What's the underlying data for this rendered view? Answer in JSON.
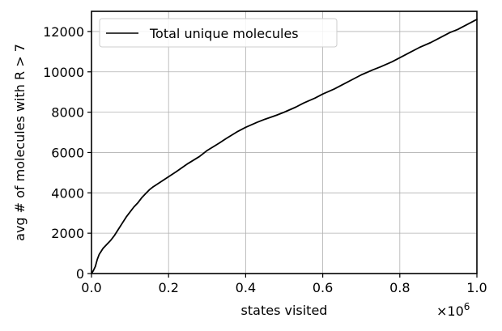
{
  "chart_data": {
    "type": "line",
    "title": "",
    "xlabel": "states visited",
    "ylabel": "avg # of molecules with R > 7",
    "x_multiplier_label": "×10",
    "x_multiplier_exponent": "6",
    "xlim": [
      0,
      1.0
    ],
    "ylim": [
      0,
      13000
    ],
    "xticks": [
      0.0,
      0.2,
      0.4,
      0.6,
      0.8,
      1.0
    ],
    "xtick_labels": [
      "0.0",
      "0.2",
      "0.4",
      "0.6",
      "0.8",
      "1.0"
    ],
    "yticks": [
      0,
      2000,
      4000,
      6000,
      8000,
      10000,
      12000
    ],
    "ytick_labels": [
      "0",
      "2000",
      "4000",
      "6000",
      "8000",
      "10000",
      "12000"
    ],
    "grid": true,
    "legend_position": "top-left",
    "series": [
      {
        "name": "Total unique molecules",
        "color": "#000000",
        "x": [
          0.0,
          0.005,
          0.01,
          0.015,
          0.02,
          0.025,
          0.03,
          0.04,
          0.05,
          0.06,
          0.07,
          0.08,
          0.09,
          0.1,
          0.11,
          0.12,
          0.13,
          0.14,
          0.15,
          0.16,
          0.18,
          0.2,
          0.22,
          0.25,
          0.28,
          0.3,
          0.33,
          0.35,
          0.38,
          0.4,
          0.43,
          0.45,
          0.48,
          0.5,
          0.53,
          0.55,
          0.58,
          0.6,
          0.63,
          0.65,
          0.68,
          0.7,
          0.73,
          0.75,
          0.78,
          0.8,
          0.83,
          0.85,
          0.88,
          0.9,
          0.93,
          0.95,
          0.98,
          1.0
        ],
        "y": [
          0,
          150,
          350,
          700,
          950,
          1100,
          1250,
          1450,
          1650,
          1900,
          2200,
          2500,
          2800,
          3050,
          3300,
          3500,
          3750,
          3950,
          4150,
          4300,
          4550,
          4800,
          5050,
          5450,
          5800,
          6100,
          6450,
          6700,
          7050,
          7250,
          7500,
          7650,
          7850,
          8000,
          8250,
          8450,
          8700,
          8900,
          9150,
          9350,
          9650,
          9850,
          10100,
          10250,
          10500,
          10700,
          11000,
          11200,
          11450,
          11650,
          11950,
          12100,
          12400,
          12600
        ]
      }
    ]
  }
}
